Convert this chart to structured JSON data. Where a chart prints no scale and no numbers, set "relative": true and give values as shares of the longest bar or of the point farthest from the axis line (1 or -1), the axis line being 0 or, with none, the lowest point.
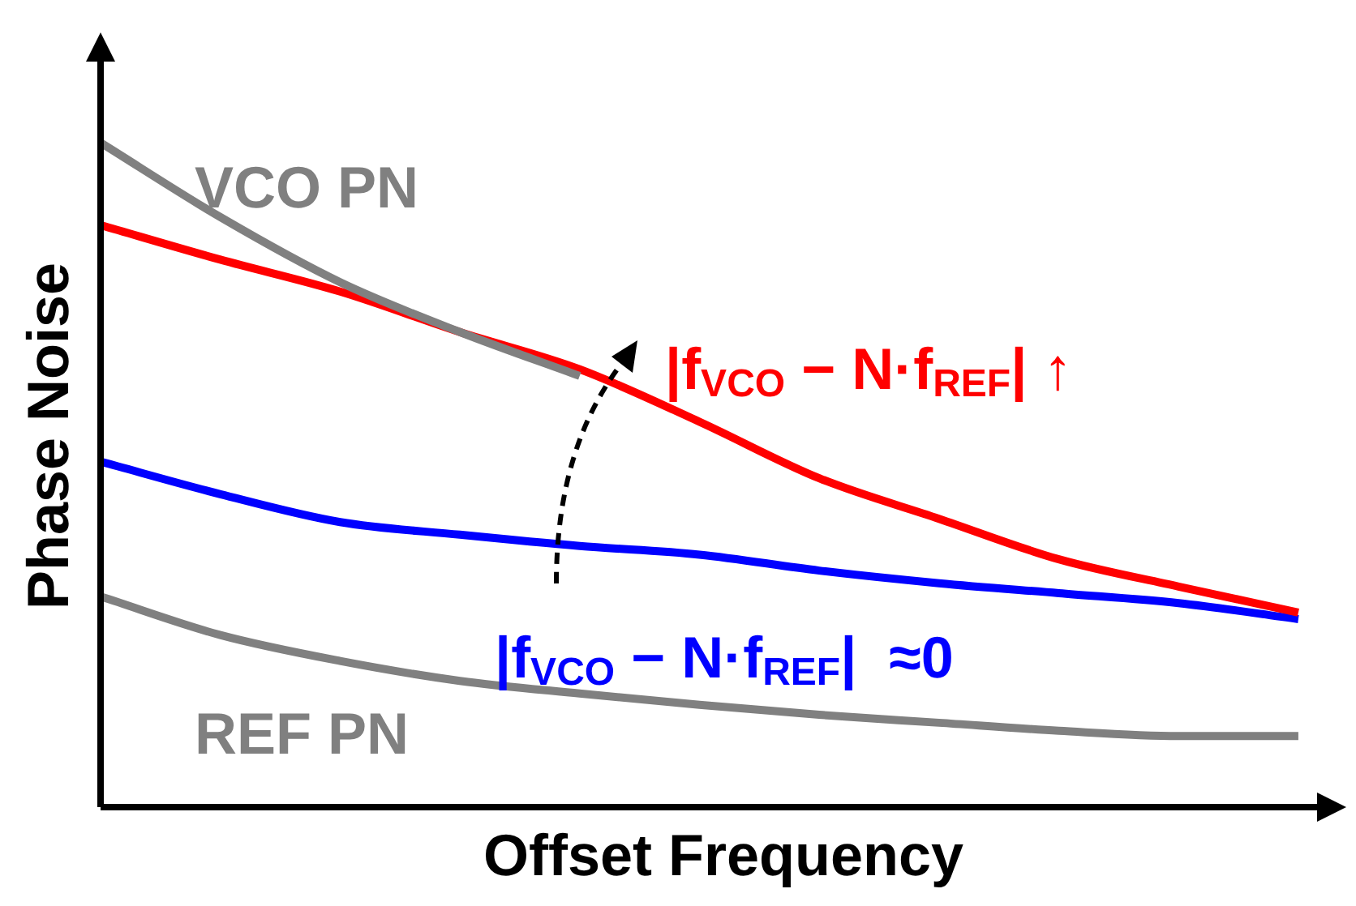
{
  "chart_data": {
    "type": "line",
    "relative": true,
    "xlabel": "Offset Frequency",
    "ylabel": "Phase Noise",
    "marker": "none",
    "line_style": "solid",
    "categories": [
      null,
      null,
      null,
      null,
      null,
      null,
      null,
      null,
      null,
      null,
      null
    ],
    "series": [
      {
        "name": "VCO PN",
        "color": "#808080",
        "values": [
          1,
          0.888,
          0.79,
          0.715,
          0.649,
          null,
          null,
          null,
          null,
          null,
          null
        ]
      },
      {
        "name": "REF PN",
        "color": "#808080",
        "values": [
          0.317,
          0.259,
          0.22,
          0.19,
          0.171,
          0.154,
          0.139,
          0.127,
          0.115,
          0.107,
          0.107
        ]
      },
      {
        "name": "|f$_{VCO}$ − N·f$_{REF}$| ↑",
        "color": "#ff0000",
        "values": [
          0.876,
          0.824,
          0.776,
          0.715,
          0.659,
          0.58,
          0.495,
          0.434,
          0.373,
          0.332,
          0.293
        ]
      },
      {
        "name": "|f$_{VCO}$ − N·f$_{REF}$|  ≈0",
        "color": "#0000ff",
        "values": [
          0.52,
          0.471,
          0.429,
          0.41,
          0.393,
          0.38,
          0.356,
          0.337,
          0.322,
          0.307,
          0.283
        ]
      }
    ]
  }
}
